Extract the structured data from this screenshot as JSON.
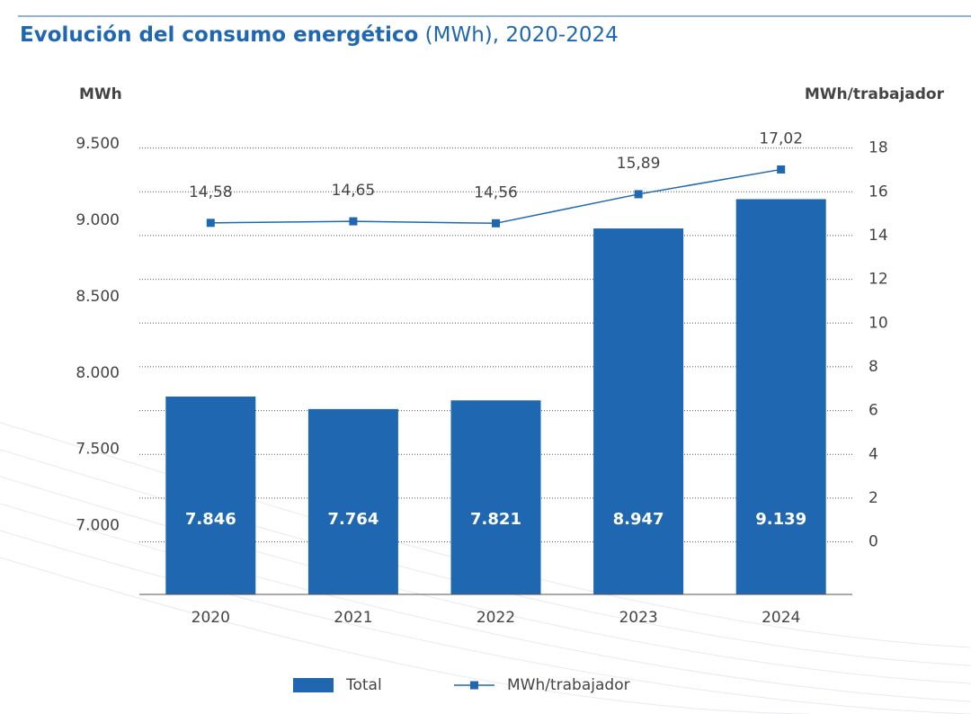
{
  "chart_data": {
    "type": "bar_line",
    "title": "Evolución del consumo energético",
    "subtitle": "(MWh), 2020-2024",
    "y_label": "MWh",
    "y2_label": "MWh/trabajador",
    "categories": [
      "2020",
      "2021",
      "2022",
      "2023",
      "2024"
    ],
    "series": [
      {
        "name": "Total",
        "type": "bar",
        "color": "#1f68b1",
        "values": [
          7846,
          7764,
          7821,
          8947,
          9139
        ],
        "value_labels": [
          "7.846",
          "7.764",
          "7.821",
          "8.947",
          "9.139"
        ]
      },
      {
        "name": "MWh/trabajador",
        "type": "line",
        "axis": "y2",
        "color": "#1f68b1",
        "values": [
          14.58,
          14.65,
          14.56,
          15.89,
          17.02
        ],
        "value_labels": [
          "14,58",
          "14,65",
          "14,56",
          "15,89",
          "17,02"
        ]
      }
    ],
    "ylim": [
      6550,
      9560
    ],
    "yticks": [
      {
        "value": 7000,
        "label": "7.000"
      },
      {
        "value": 7500,
        "label": "7.500"
      },
      {
        "value": 8000,
        "label": "8.000"
      },
      {
        "value": 8500,
        "label": "8.500"
      },
      {
        "value": 9000,
        "label": "9.000"
      },
      {
        "value": 9500,
        "label": "9.500"
      }
    ],
    "y2lim": [
      -2.4,
      18.6
    ],
    "y2ticks": [
      0,
      2,
      4,
      6,
      8,
      10,
      12,
      14,
      16,
      18
    ],
    "grid": true
  }
}
